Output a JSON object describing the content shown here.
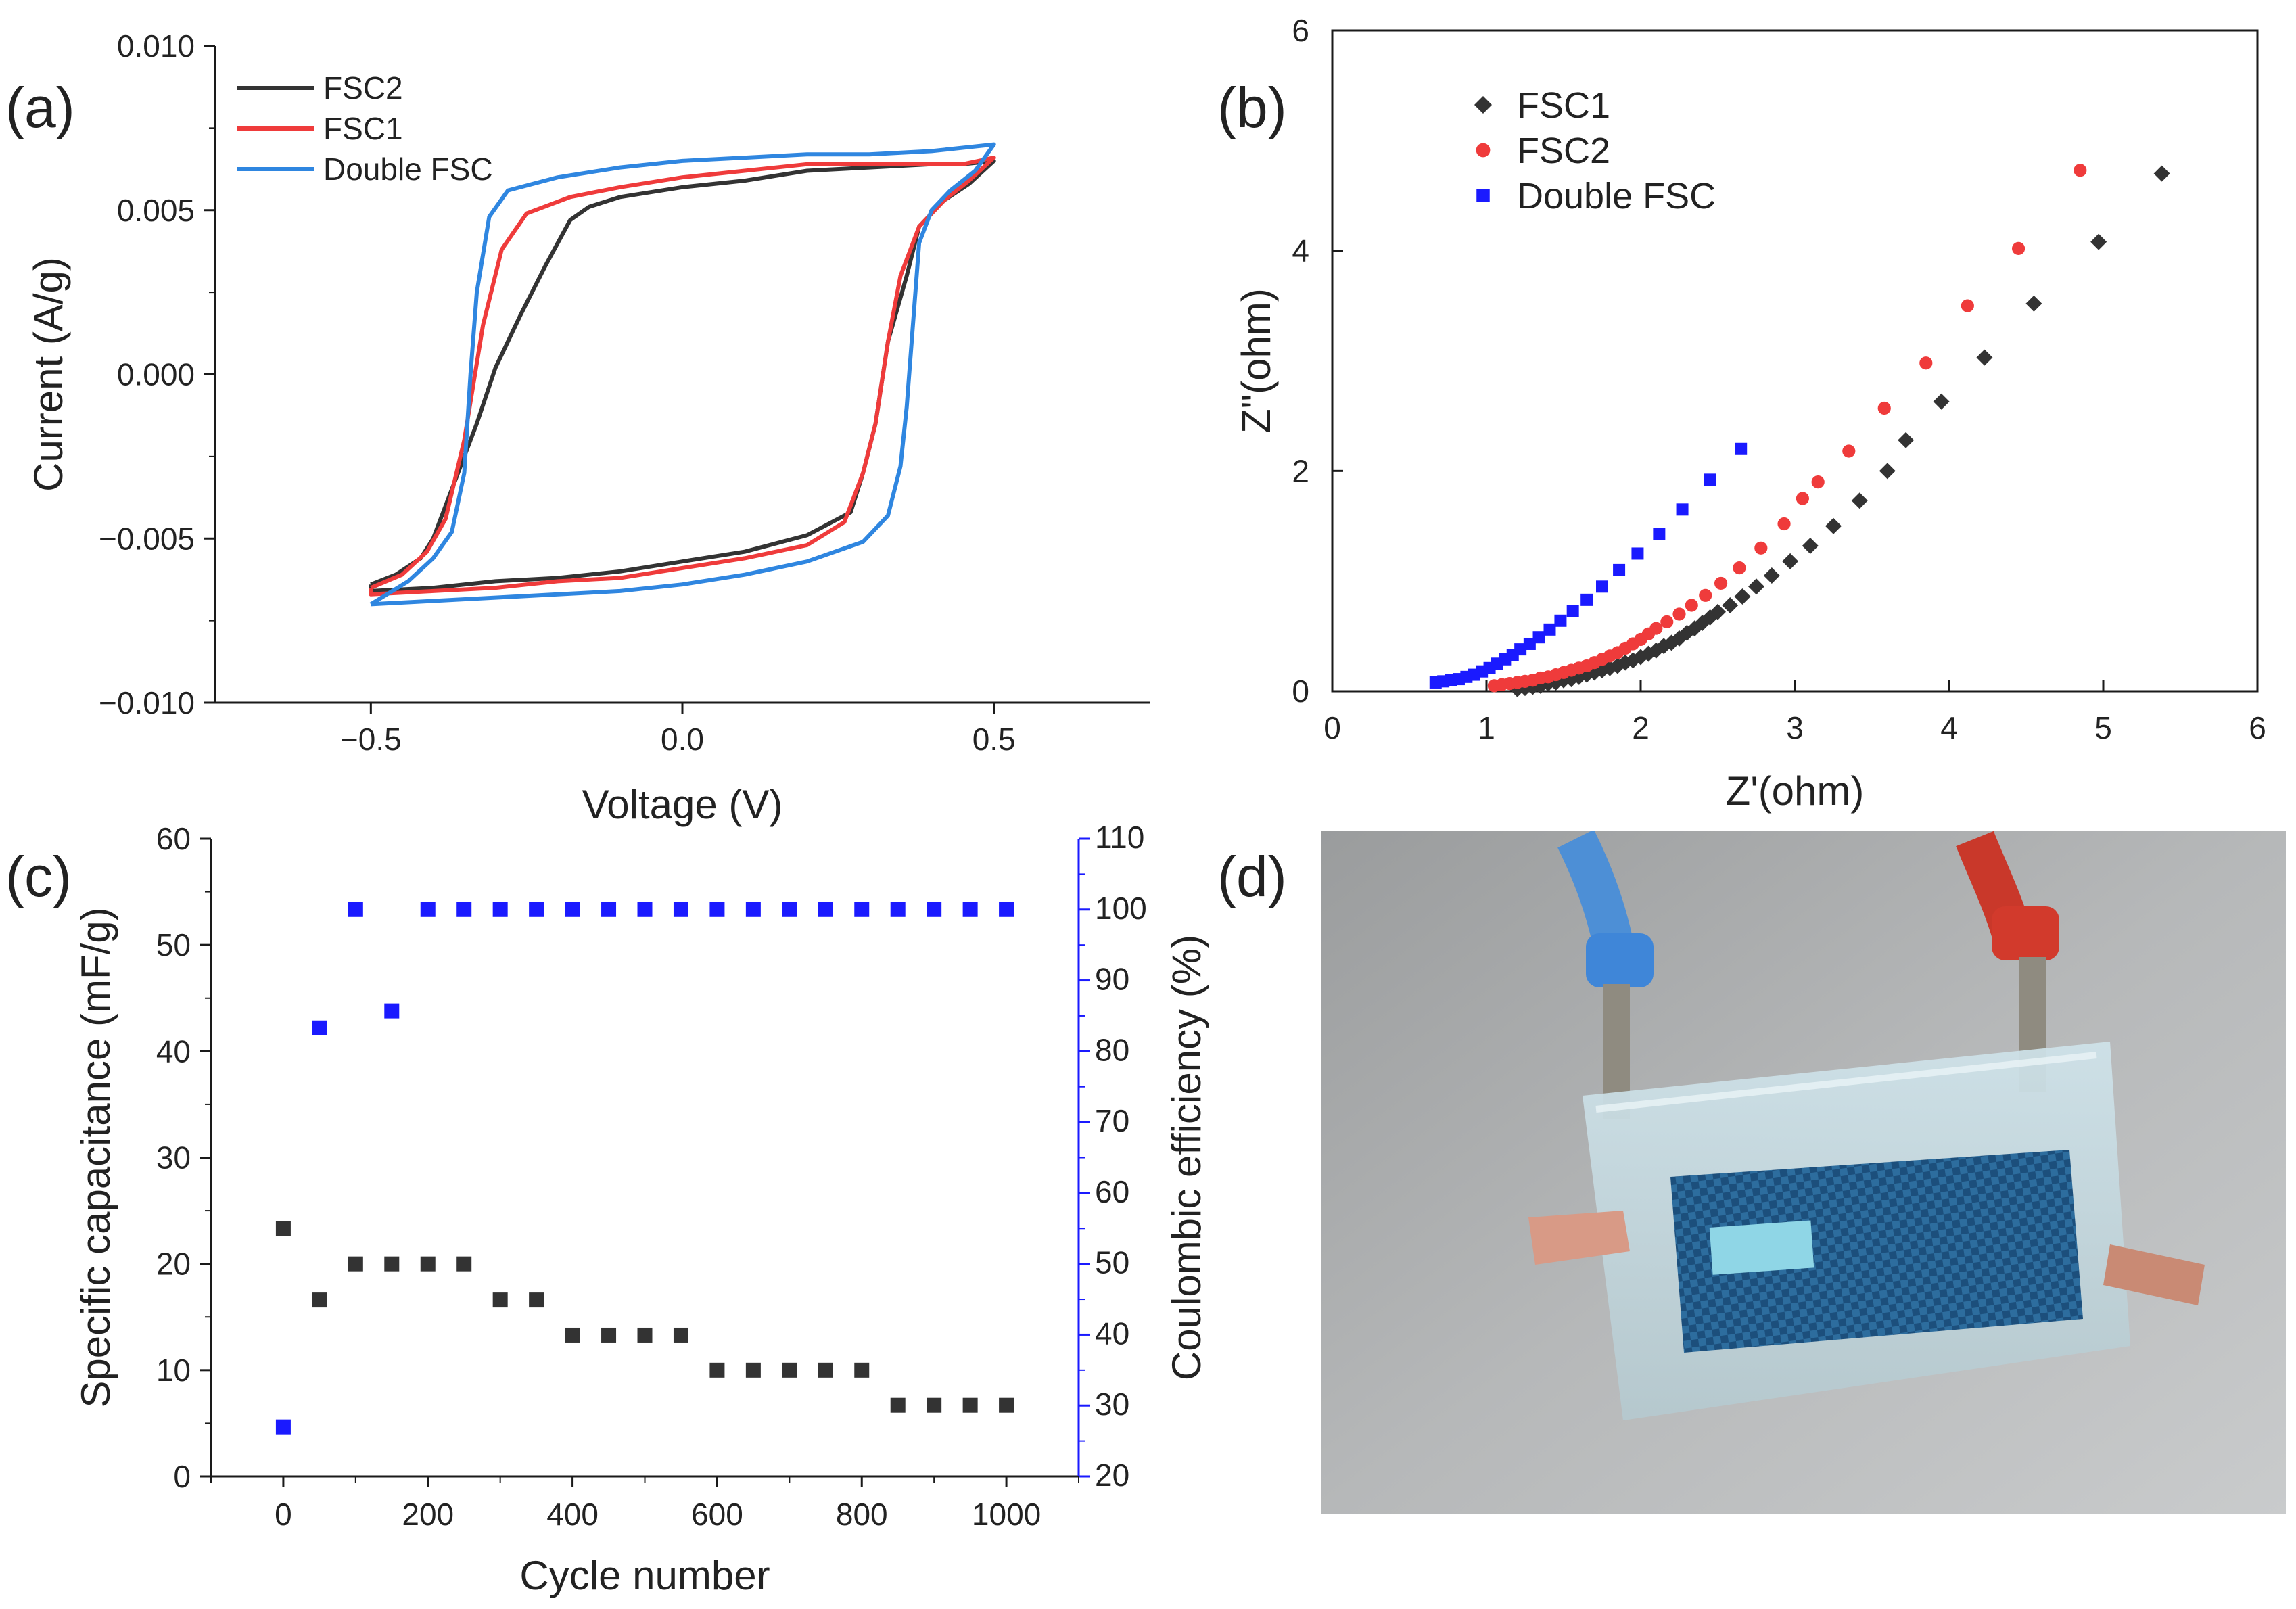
{
  "colors": {
    "black": "#333333",
    "red": "#ef3b3b",
    "blue": "#2f86e0",
    "blue_marker": "#1a1aff",
    "axis": "#1a1a1a"
  },
  "panel_labels": {
    "a": "(a)",
    "b": "(b)",
    "c": "(c)",
    "d": "(d)"
  },
  "chart_data": [
    {
      "id": "a",
      "type": "line",
      "title": "",
      "xlabel": "Voltage (V)",
      "ylabel": "Current (A/g)",
      "xlim": [
        -0.75,
        0.75
      ],
      "ylim": [
        -0.01,
        0.01
      ],
      "xticks": [
        -0.5,
        0.0,
        0.5
      ],
      "xtick_labels": [
        "−0.5",
        "0.0",
        "0.5"
      ],
      "yticks": [
        -0.01,
        -0.005,
        0.0,
        0.005,
        0.01
      ],
      "ytick_labels": [
        "−0.010",
        "−0.005",
        "0.000",
        "0.005",
        "0.010"
      ],
      "legend": [
        "FSC2",
        "FSC1",
        "Double FSC"
      ],
      "series": [
        {
          "name": "FSC2",
          "color_key": "black",
          "points": [
            [
              -0.5,
              -0.0064
            ],
            [
              -0.46,
              -0.0061
            ],
            [
              -0.42,
              -0.0056
            ],
            [
              -0.4,
              -0.005
            ],
            [
              -0.37,
              -0.0035
            ],
            [
              -0.33,
              -0.0015
            ],
            [
              -0.3,
              0.0002
            ],
            [
              -0.26,
              0.0018
            ],
            [
              -0.22,
              0.0033
            ],
            [
              -0.18,
              0.0047
            ],
            [
              -0.15,
              0.0051
            ],
            [
              -0.1,
              0.0054
            ],
            [
              0.0,
              0.0057
            ],
            [
              0.1,
              0.0059
            ],
            [
              0.2,
              0.0062
            ],
            [
              0.3,
              0.0063
            ],
            [
              0.4,
              0.0064
            ],
            [
              0.45,
              0.0064
            ],
            [
              0.5,
              0.0065
            ],
            [
              0.46,
              0.0058
            ],
            [
              0.42,
              0.0053
            ],
            [
              0.38,
              0.0045
            ],
            [
              0.36,
              0.003
            ],
            [
              0.33,
              0.001
            ],
            [
              0.31,
              -0.0015
            ],
            [
              0.29,
              -0.003
            ],
            [
              0.27,
              -0.0042
            ],
            [
              0.2,
              -0.0049
            ],
            [
              0.1,
              -0.0054
            ],
            [
              0.0,
              -0.0057
            ],
            [
              -0.1,
              -0.006
            ],
            [
              -0.2,
              -0.0062
            ],
            [
              -0.3,
              -0.0063
            ],
            [
              -0.4,
              -0.0065
            ],
            [
              -0.5,
              -0.0066
            ]
          ]
        },
        {
          "name": "FSC1",
          "color_key": "red",
          "points": [
            [
              -0.5,
              -0.0065
            ],
            [
              -0.45,
              -0.0061
            ],
            [
              -0.41,
              -0.0054
            ],
            [
              -0.38,
              -0.0044
            ],
            [
              -0.35,
              -0.002
            ],
            [
              -0.32,
              0.0015
            ],
            [
              -0.29,
              0.0038
            ],
            [
              -0.25,
              0.0049
            ],
            [
              -0.18,
              0.0054
            ],
            [
              -0.1,
              0.0057
            ],
            [
              0.0,
              0.006
            ],
            [
              0.1,
              0.0062
            ],
            [
              0.2,
              0.0064
            ],
            [
              0.3,
              0.0064
            ],
            [
              0.4,
              0.0064
            ],
            [
              0.45,
              0.0064
            ],
            [
              0.5,
              0.0066
            ],
            [
              0.46,
              0.0059
            ],
            [
              0.42,
              0.0053
            ],
            [
              0.38,
              0.0045
            ],
            [
              0.35,
              0.003
            ],
            [
              0.33,
              0.001
            ],
            [
              0.31,
              -0.0015
            ],
            [
              0.29,
              -0.003
            ],
            [
              0.26,
              -0.0045
            ],
            [
              0.2,
              -0.0052
            ],
            [
              0.1,
              -0.0056
            ],
            [
              0.0,
              -0.0059
            ],
            [
              -0.1,
              -0.0062
            ],
            [
              -0.2,
              -0.0063
            ],
            [
              -0.3,
              -0.0065
            ],
            [
              -0.4,
              -0.0066
            ],
            [
              -0.5,
              -0.0067
            ]
          ]
        },
        {
          "name": "Double FSC",
          "color_key": "blue",
          "points": [
            [
              -0.5,
              -0.007
            ],
            [
              -0.44,
              -0.0063
            ],
            [
              -0.4,
              -0.0056
            ],
            [
              -0.37,
              -0.0048
            ],
            [
              -0.35,
              -0.003
            ],
            [
              -0.34,
              0.0
            ],
            [
              -0.33,
              0.0025
            ],
            [
              -0.31,
              0.0048
            ],
            [
              -0.28,
              0.0056
            ],
            [
              -0.2,
              0.006
            ],
            [
              -0.1,
              0.0063
            ],
            [
              0.0,
              0.0065
            ],
            [
              0.1,
              0.0066
            ],
            [
              0.2,
              0.0067
            ],
            [
              0.3,
              0.0067
            ],
            [
              0.4,
              0.0068
            ],
            [
              0.45,
              0.0069
            ],
            [
              0.5,
              0.007
            ],
            [
              0.47,
              0.0062
            ],
            [
              0.43,
              0.0056
            ],
            [
              0.4,
              0.005
            ],
            [
              0.38,
              0.004
            ],
            [
              0.37,
              0.0015
            ],
            [
              0.36,
              -0.001
            ],
            [
              0.35,
              -0.0028
            ],
            [
              0.33,
              -0.0043
            ],
            [
              0.29,
              -0.0051
            ],
            [
              0.2,
              -0.0057
            ],
            [
              0.1,
              -0.0061
            ],
            [
              0.0,
              -0.0064
            ],
            [
              -0.1,
              -0.0066
            ],
            [
              -0.2,
              -0.0067
            ],
            [
              -0.3,
              -0.0068
            ],
            [
              -0.4,
              -0.0069
            ],
            [
              -0.5,
              -0.007
            ]
          ]
        }
      ]
    },
    {
      "id": "b",
      "type": "scatter",
      "title": "",
      "xlabel": "Z'(ohm)",
      "ylabel": "Z\"(ohm)",
      "xlim": [
        0,
        6
      ],
      "ylim": [
        0,
        6
      ],
      "xticks": [
        0,
        1,
        2,
        3,
        4,
        5,
        6
      ],
      "xtick_labels": [
        "0",
        "1",
        "2",
        "3",
        "4",
        "5",
        "6"
      ],
      "yticks": [
        0,
        2,
        4,
        6
      ],
      "ytick_labels": [
        "0",
        "2",
        "4",
        "6"
      ],
      "legend": [
        "FSC1",
        "FSC2",
        "Double FSC"
      ],
      "series": [
        {
          "name": "FSC1",
          "marker": "diamond",
          "color_key": "black",
          "points": [
            [
              1.2,
              0.02
            ],
            [
              1.25,
              0.03
            ],
            [
              1.3,
              0.04
            ],
            [
              1.35,
              0.05
            ],
            [
              1.4,
              0.07
            ],
            [
              1.45,
              0.08
            ],
            [
              1.5,
              0.1
            ],
            [
              1.55,
              0.11
            ],
            [
              1.6,
              0.13
            ],
            [
              1.65,
              0.15
            ],
            [
              1.7,
              0.17
            ],
            [
              1.75,
              0.19
            ],
            [
              1.8,
              0.21
            ],
            [
              1.85,
              0.23
            ],
            [
              1.9,
              0.26
            ],
            [
              1.95,
              0.28
            ],
            [
              2.0,
              0.31
            ],
            [
              2.05,
              0.34
            ],
            [
              2.1,
              0.37
            ],
            [
              2.15,
              0.41
            ],
            [
              2.2,
              0.44
            ],
            [
              2.25,
              0.48
            ],
            [
              2.3,
              0.53
            ],
            [
              2.35,
              0.57
            ],
            [
              2.4,
              0.62
            ],
            [
              2.45,
              0.67
            ],
            [
              2.5,
              0.72
            ],
            [
              2.58,
              0.78
            ],
            [
              2.66,
              0.86
            ],
            [
              2.75,
              0.95
            ],
            [
              2.85,
              1.05
            ],
            [
              2.97,
              1.18
            ],
            [
              3.1,
              1.32
            ],
            [
              3.25,
              1.5
            ],
            [
              3.42,
              1.73
            ],
            [
              3.6,
              2.0
            ],
            [
              3.72,
              2.28
            ],
            [
              3.95,
              2.63
            ],
            [
              4.23,
              3.03
            ],
            [
              4.55,
              3.52
            ],
            [
              4.97,
              4.08
            ],
            [
              5.38,
              4.7
            ]
          ]
        },
        {
          "name": "FSC2",
          "marker": "circle",
          "color_key": "red",
          "points": [
            [
              1.05,
              0.05
            ],
            [
              1.1,
              0.06
            ],
            [
              1.15,
              0.07
            ],
            [
              1.2,
              0.08
            ],
            [
              1.25,
              0.09
            ],
            [
              1.3,
              0.1
            ],
            [
              1.35,
              0.12
            ],
            [
              1.4,
              0.13
            ],
            [
              1.45,
              0.15
            ],
            [
              1.5,
              0.17
            ],
            [
              1.55,
              0.19
            ],
            [
              1.6,
              0.21
            ],
            [
              1.65,
              0.23
            ],
            [
              1.7,
              0.26
            ],
            [
              1.75,
              0.29
            ],
            [
              1.8,
              0.32
            ],
            [
              1.85,
              0.35
            ],
            [
              1.9,
              0.39
            ],
            [
              1.95,
              0.43
            ],
            [
              2.0,
              0.47
            ],
            [
              2.05,
              0.52
            ],
            [
              2.1,
              0.57
            ],
            [
              2.17,
              0.63
            ],
            [
              2.25,
              0.7
            ],
            [
              2.33,
              0.78
            ],
            [
              2.42,
              0.87
            ],
            [
              2.52,
              0.98
            ],
            [
              2.64,
              1.12
            ],
            [
              2.78,
              1.3
            ],
            [
              2.93,
              1.52
            ],
            [
              3.05,
              1.75
            ],
            [
              3.15,
              1.9
            ],
            [
              3.35,
              2.18
            ],
            [
              3.58,
              2.57
            ],
            [
              3.85,
              2.98
            ],
            [
              4.12,
              3.5
            ],
            [
              4.45,
              4.02
            ],
            [
              4.85,
              4.73
            ]
          ]
        },
        {
          "name": "Double FSC",
          "marker": "square",
          "color_key": "blue_marker",
          "points": [
            [
              0.67,
              0.08
            ],
            [
              0.72,
              0.09
            ],
            [
              0.77,
              0.1
            ],
            [
              0.82,
              0.11
            ],
            [
              0.87,
              0.13
            ],
            [
              0.92,
              0.15
            ],
            [
              0.97,
              0.18
            ],
            [
              1.02,
              0.21
            ],
            [
              1.07,
              0.25
            ],
            [
              1.12,
              0.29
            ],
            [
              1.17,
              0.33
            ],
            [
              1.22,
              0.38
            ],
            [
              1.28,
              0.43
            ],
            [
              1.34,
              0.49
            ],
            [
              1.41,
              0.56
            ],
            [
              1.48,
              0.64
            ],
            [
              1.56,
              0.73
            ],
            [
              1.65,
              0.83
            ],
            [
              1.75,
              0.95
            ],
            [
              1.86,
              1.1
            ],
            [
              1.98,
              1.25
            ],
            [
              2.12,
              1.43
            ],
            [
              2.27,
              1.65
            ],
            [
              2.45,
              1.92
            ],
            [
              2.65,
              2.2
            ]
          ]
        }
      ]
    },
    {
      "id": "c",
      "type": "scatter",
      "title": "",
      "xlabel": "Cycle number",
      "ylabel": "Specific capacitance (mF/g)",
      "ylabel_right": "Coulombic efficiency (%)",
      "xlim": [
        -100,
        1100
      ],
      "ylim": [
        0,
        60
      ],
      "ylim_right": [
        20,
        110
      ],
      "xticks": [
        0,
        200,
        400,
        600,
        800,
        1000
      ],
      "xtick_labels": [
        "0",
        "200",
        "400",
        "600",
        "800",
        "1000"
      ],
      "yticks": [
        0,
        10,
        20,
        30,
        40,
        50,
        60
      ],
      "ytick_labels": [
        "0",
        "10",
        "20",
        "30",
        "40",
        "50",
        "60"
      ],
      "yticks_right": [
        20,
        30,
        40,
        50,
        60,
        70,
        80,
        90,
        100,
        110
      ],
      "ytick_labels_right": [
        "20",
        "30",
        "40",
        "50",
        "60",
        "70",
        "80",
        "90",
        "100",
        "110"
      ],
      "series": [
        {
          "name": "Specific capacitance",
          "axis": "left",
          "color_key": "black",
          "x": [
            0,
            50,
            100,
            150,
            200,
            250,
            300,
            350,
            400,
            450,
            500,
            550,
            600,
            650,
            700,
            750,
            800,
            850,
            900,
            950,
            1000
          ],
          "values": [
            23.3,
            16.6,
            20,
            20,
            20,
            20,
            16.6,
            16.6,
            13.3,
            13.3,
            13.3,
            13.3,
            10,
            10,
            10,
            10,
            10,
            6.7,
            6.7,
            6.7,
            6.7
          ]
        },
        {
          "name": "Coulombic efficiency",
          "axis": "right",
          "color_key": "blue_marker",
          "x": [
            0,
            50,
            100,
            150,
            200,
            250,
            300,
            350,
            400,
            450,
            500,
            550,
            600,
            650,
            700,
            750,
            800,
            850,
            900,
            950,
            1000
          ],
          "values": [
            27,
            83.3,
            100,
            85.7,
            100,
            100,
            100,
            100,
            100,
            100,
            100,
            100,
            100,
            100,
            100,
            100,
            100,
            100,
            100,
            100,
            100
          ]
        }
      ]
    }
  ]
}
